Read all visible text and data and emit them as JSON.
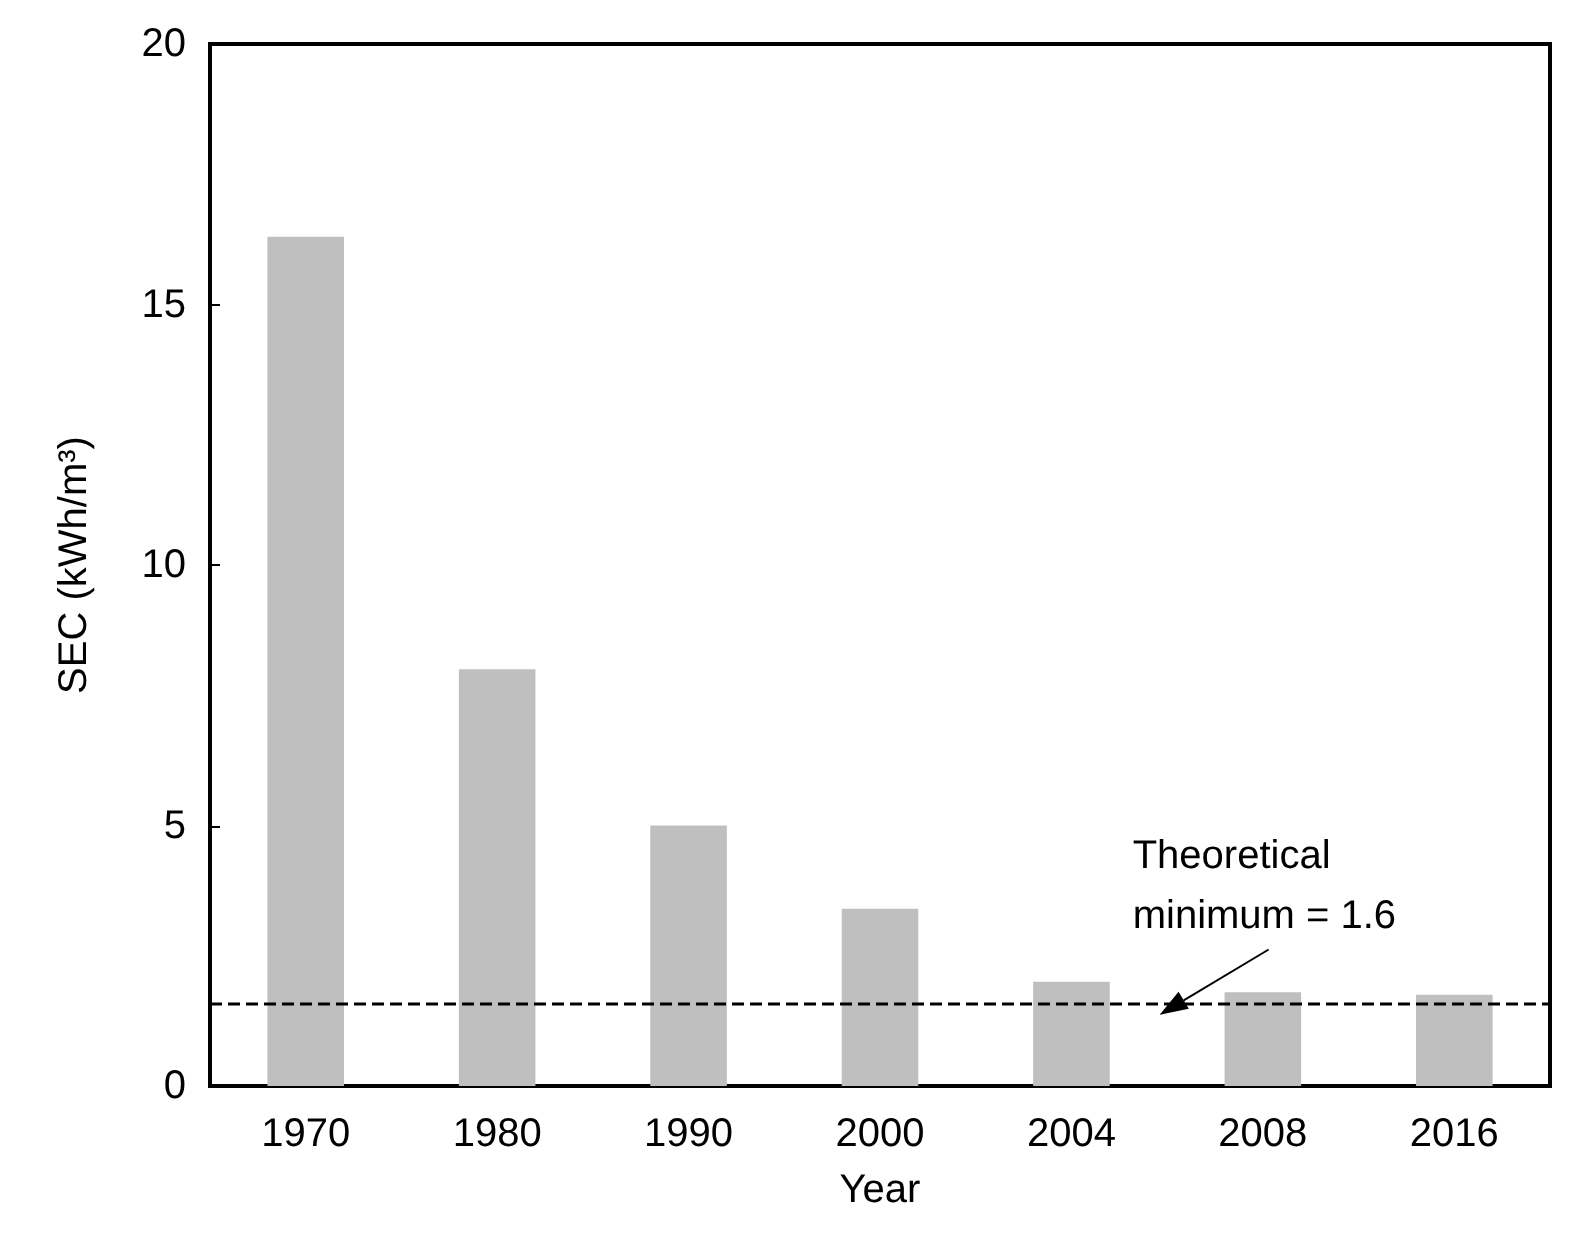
{
  "chart_data": {
    "type": "bar",
    "xlabel": "Year",
    "ylabel": "SEC (kWh/m³)",
    "categories": [
      "1970",
      "1980",
      "1990",
      "2000",
      "2004",
      "2008",
      "2016"
    ],
    "values": [
      16.3,
      8.0,
      5.0,
      3.4,
      2.0,
      1.8,
      1.75
    ],
    "color": "#bfbfbf",
    "ylim": [
      0,
      20
    ],
    "yticks": [
      0,
      5,
      10,
      15,
      20
    ],
    "grid": false,
    "ref_lines": [
      {
        "axis": "y",
        "value": 1.6,
        "label": "Theoretical minimum = 1.6",
        "color": "#000000",
        "line_style": "dashed"
      }
    ]
  }
}
